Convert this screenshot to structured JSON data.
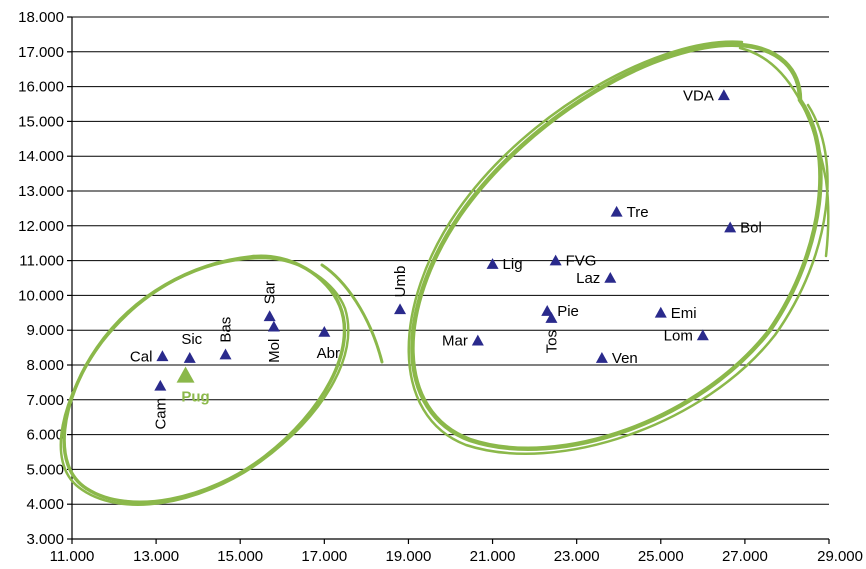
{
  "chart_data": {
    "type": "scatter",
    "title": "",
    "xlabel": "",
    "ylabel": "",
    "xlim": [
      11000,
      29000
    ],
    "ylim": [
      3000,
      18000
    ],
    "x_ticks": [
      11000,
      13000,
      15000,
      17000,
      19000,
      21000,
      23000,
      25000,
      27000,
      29000
    ],
    "y_ticks": [
      3000,
      4000,
      5000,
      6000,
      7000,
      8000,
      9000,
      10000,
      11000,
      12000,
      13000,
      14000,
      15000,
      16000,
      17000,
      18000
    ],
    "x_tick_labels": [
      "11.000",
      "13.000",
      "15.000",
      "17.000",
      "19.000",
      "21.000",
      "23.000",
      "25.000",
      "27.000",
      "29.000"
    ],
    "y_tick_labels": [
      "3.000",
      "4.000",
      "5.000",
      "6.000",
      "7.000",
      "8.000",
      "9.000",
      "10.000",
      "11.000",
      "12.000",
      "13.000",
      "14.000",
      "15.000",
      "16.000",
      "17.000",
      "18.000"
    ],
    "grid": "horizontal",
    "marker_color": "#2a2a8c",
    "highlight_color": "#8bb84a",
    "series": [
      {
        "points": [
          {
            "label": "Cal",
            "x": 13150,
            "y": 8250,
            "anchor": "left",
            "rotate": false
          },
          {
            "label": "Cam",
            "x": 13100,
            "y": 7400,
            "anchor": "below",
            "rotate": true
          },
          {
            "label": "Sic",
            "x": 13800,
            "y": 8200,
            "anchor": "above",
            "rotate": false
          },
          {
            "label": "Pug",
            "x": 13700,
            "y": 7700,
            "anchor": "below",
            "rotate": false,
            "highlight": true
          },
          {
            "label": "Bas",
            "x": 14650,
            "y": 8300,
            "anchor": "above",
            "rotate": true
          },
          {
            "label": "Sar",
            "x": 15700,
            "y": 9400,
            "anchor": "above",
            "rotate": true
          },
          {
            "label": "Mol",
            "x": 15800,
            "y": 9100,
            "anchor": "below",
            "rotate": true
          },
          {
            "label": "Abr",
            "x": 17000,
            "y": 8950,
            "anchor": "below",
            "rotate": false
          },
          {
            "label": "Umb",
            "x": 18800,
            "y": 9600,
            "anchor": "above",
            "rotate": true
          },
          {
            "label": "Mar",
            "x": 20650,
            "y": 8700,
            "anchor": "left",
            "rotate": false
          },
          {
            "label": "Lig",
            "x": 21000,
            "y": 10900,
            "anchor": "right",
            "rotate": false
          },
          {
            "label": "Pie",
            "x": 22300,
            "y": 9550,
            "anchor": "right",
            "rotate": false
          },
          {
            "label": "Tos",
            "x": 22400,
            "y": 9350,
            "anchor": "below",
            "rotate": true
          },
          {
            "label": "FVG",
            "x": 22500,
            "y": 11000,
            "anchor": "right",
            "rotate": false
          },
          {
            "label": "Ven",
            "x": 23600,
            "y": 8200,
            "anchor": "right",
            "rotate": false
          },
          {
            "label": "Laz",
            "x": 23800,
            "y": 10500,
            "anchor": "left",
            "rotate": false
          },
          {
            "label": "Tre",
            "x": 23950,
            "y": 12400,
            "anchor": "right",
            "rotate": false
          },
          {
            "label": "Emi",
            "x": 25000,
            "y": 9500,
            "anchor": "right",
            "rotate": false
          },
          {
            "label": "Lom",
            "x": 26000,
            "y": 8850,
            "anchor": "left",
            "rotate": false
          },
          {
            "label": "VDA",
            "x": 26500,
            "y": 15750,
            "anchor": "left",
            "rotate": false
          },
          {
            "label": "Bol",
            "x": 26650,
            "y": 11950,
            "anchor": "right",
            "rotate": false
          }
        ]
      }
    ]
  }
}
